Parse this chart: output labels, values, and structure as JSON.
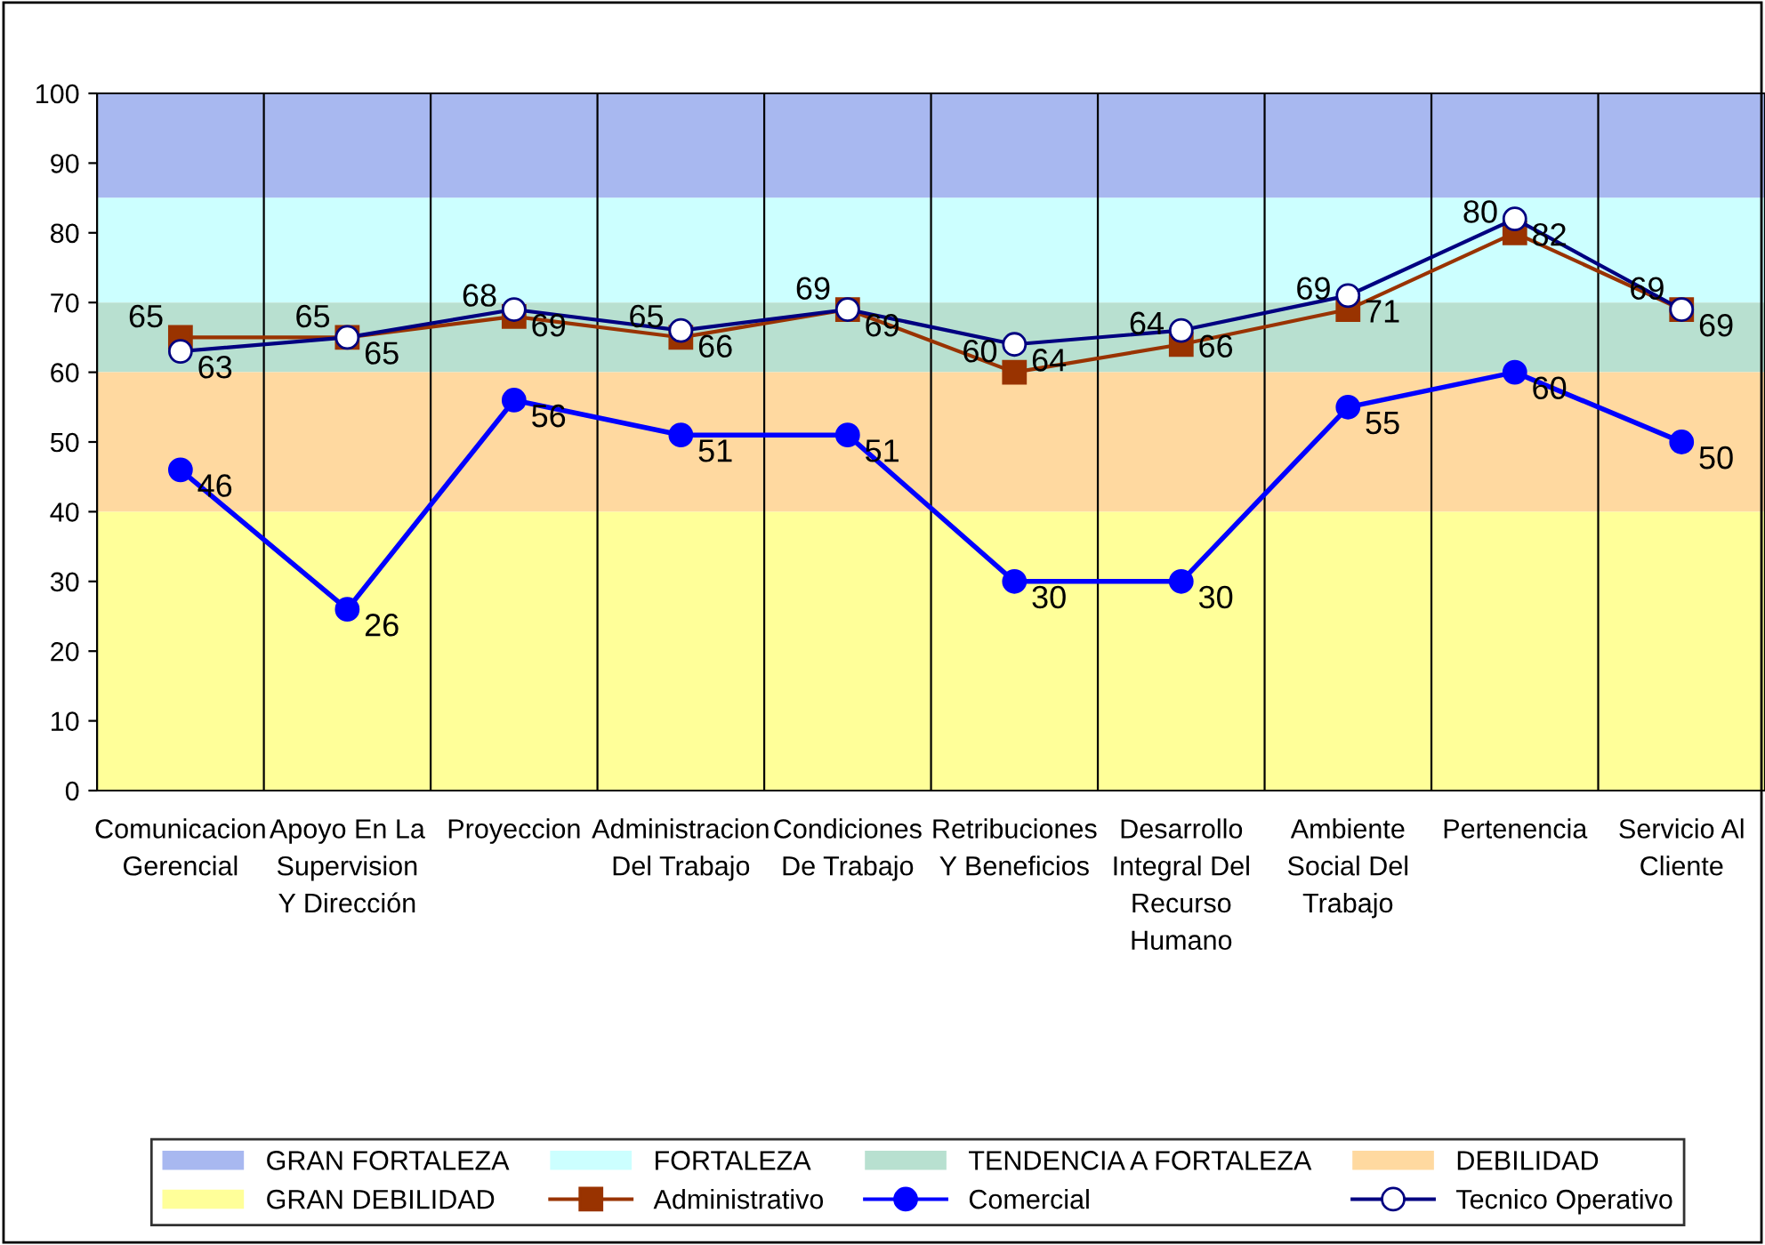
{
  "chart_data": {
    "type": "line",
    "categories": [
      "Comunicacion Gerencial",
      "Apoyo En La Supervision Y Dirección",
      "Proyeccion",
      "Administracion Del Trabajo",
      "Condiciones De Trabajo",
      "Retribuciones Y Beneficios",
      "Desarrollo Integral Del Recurso Humano",
      "Ambiente Social Del Trabajo",
      "Pertenencia",
      "Servicio Al Cliente"
    ],
    "series": [
      {
        "name": "Administrativo",
        "color": "#993300",
        "marker": "square",
        "values": [
          65,
          65,
          68,
          65,
          69,
          60,
          64,
          69,
          80,
          69
        ]
      },
      {
        "name": "Comercial",
        "color": "#0000ff",
        "marker": "circle",
        "values": [
          46,
          26,
          56,
          51,
          51,
          30,
          30,
          55,
          60,
          50
        ]
      },
      {
        "name": "Tecnico Operativo",
        "color": "#000080",
        "marker": "circle",
        "values": [
          63,
          65,
          69,
          66,
          69,
          64,
          66,
          71,
          82,
          69
        ]
      }
    ],
    "bands": [
      {
        "axis": "y",
        "from": 85,
        "to": 100,
        "label": "GRAN FORTALEZA",
        "color": "#a8b8f0"
      },
      {
        "axis": "y",
        "from": 70,
        "to": 85,
        "label": "FORTALEZA",
        "color": "#ccffff"
      },
      {
        "axis": "y",
        "from": 60,
        "to": 70,
        "label": "TENDENCIA A FORTALEZA",
        "color": "#b8e0d0"
      },
      {
        "axis": "y",
        "from": 40,
        "to": 60,
        "label": "DEBILIDAD",
        "color": "#ffd9a0"
      },
      {
        "axis": "y",
        "from": 0,
        "to": 40,
        "label": "GRAN DEBILIDAD",
        "color": "#ffff99"
      }
    ],
    "ylim": [
      0,
      100
    ],
    "yticks": [
      0,
      10,
      20,
      30,
      40,
      50,
      60,
      70,
      80,
      90,
      100
    ],
    "grid": "x",
    "data_labels": true,
    "legend": "bottom",
    "line_style": "solid"
  }
}
